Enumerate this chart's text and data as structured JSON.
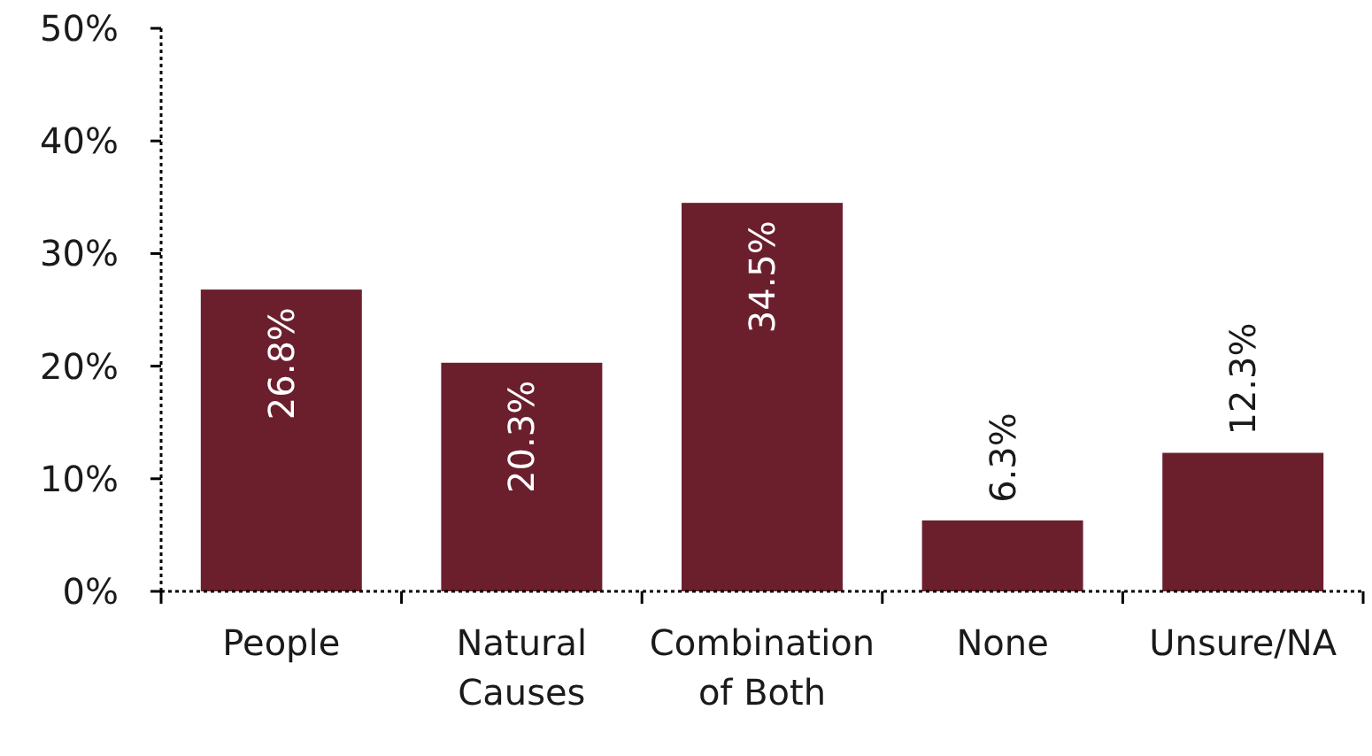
{
  "chart_data": {
    "type": "bar",
    "categories": [
      "People",
      "Natural Causes",
      "Combination of Both",
      "None",
      "Unsure/NA"
    ],
    "values": [
      26.8,
      20.3,
      34.5,
      6.3,
      12.3
    ],
    "value_labels": [
      "26.8%",
      "20.3%",
      "34.5%",
      "6.3%",
      "12.3%"
    ],
    "color": "#6b1f2d",
    "ylim": [
      0,
      50
    ],
    "yticks": [
      {
        "value": 0,
        "label": "0%"
      },
      {
        "value": 10,
        "label": "10%"
      },
      {
        "value": 20,
        "label": "20%"
      },
      {
        "value": 30,
        "label": "30%"
      },
      {
        "value": 40,
        "label": "40%"
      },
      {
        "value": 50,
        "label": "50%"
      }
    ],
    "grid": false
  }
}
